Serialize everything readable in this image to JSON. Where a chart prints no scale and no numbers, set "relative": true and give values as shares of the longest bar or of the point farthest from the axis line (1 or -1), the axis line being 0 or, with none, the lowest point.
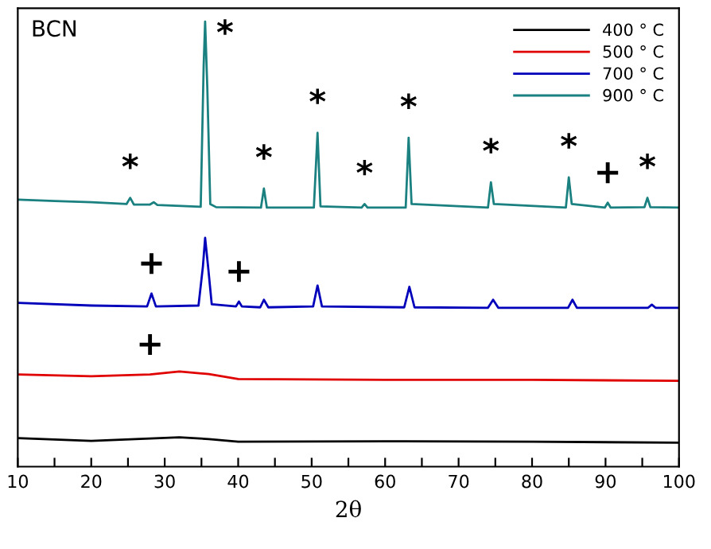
{
  "chart_data": {
    "type": "line",
    "xlabel": "2θ",
    "relative": true,
    "xlim": [
      10,
      100
    ],
    "xticks": [
      10,
      {
        "value": 15,
        "label": null
      },
      20,
      {
        "value": 25,
        "label": null
      },
      30,
      {
        "value": 35,
        "label": null
      },
      40,
      {
        "value": 45,
        "label": null
      },
      50,
      {
        "value": 55,
        "label": null
      },
      60,
      {
        "value": 65,
        "label": null
      },
      70,
      {
        "value": 75,
        "label": null
      },
      80,
      {
        "value": 85,
        "label": null
      },
      90,
      {
        "value": 95,
        "label": null
      },
      100
    ],
    "tick_labels": "x",
    "grid": false,
    "legend": "top right",
    "marker": "none",
    "line_style": "solid",
    "series": [
      {
        "name": "400 ° C",
        "color": "#000000",
        "x": [
          10,
          20,
          32,
          36,
          40,
          60,
          80,
          100
        ],
        "values": [
          0.064,
          0.058,
          0.066,
          0.062,
          0.056,
          0.057,
          0.056,
          0.054
        ]
      },
      {
        "name": "500 ° C",
        "color": "#e00000",
        "x": [
          10,
          20,
          28,
          32,
          36,
          40,
          60,
          80,
          100
        ],
        "values": [
          0.207,
          0.203,
          0.207,
          0.214,
          0.208,
          0.197,
          0.195,
          0.195,
          0.193
        ]
      },
      {
        "name": "700 ° C",
        "color": "#0000bb",
        "x": [
          10,
          20,
          27.6,
          28.2,
          28.8,
          34.6,
          35.2,
          35.5,
          35.9,
          36.4,
          39.7,
          40.1,
          40.5,
          43,
          43.5,
          44.1,
          50.2,
          50.8,
          51.4,
          62.6,
          63.3,
          64,
          74,
          74.7,
          75.4,
          84.9,
          85.5,
          86.1,
          95.8,
          96.3,
          96.8,
          100
        ],
        "values": [
          0.368,
          0.362,
          0.36,
          0.389,
          0.36,
          0.362,
          0.45,
          0.514,
          0.45,
          0.365,
          0.36,
          0.371,
          0.36,
          0.358,
          0.375,
          0.358,
          0.36,
          0.407,
          0.36,
          0.358,
          0.404,
          0.358,
          0.357,
          0.375,
          0.357,
          0.357,
          0.375,
          0.357,
          0.357,
          0.364,
          0.357,
          0.357
        ]
      },
      {
        "name": "900 ° C",
        "color": "#1a8080",
        "x": [
          10,
          15,
          20,
          24.8,
          25.3,
          25.8,
          28,
          28.5,
          29,
          34.9,
          35.3,
          35.5,
          35.8,
          36.2,
          37,
          43.1,
          43.5,
          43.9,
          50.3,
          50.8,
          51.2,
          56.8,
          57.2,
          57.6,
          62.8,
          63.2,
          63.6,
          74,
          74.4,
          74.8,
          84.6,
          85,
          85.4,
          89.9,
          90.3,
          90.7,
          95.3,
          95.7,
          96.1,
          100
        ],
        "values": [
          0.6,
          0.597,
          0.594,
          0.59,
          0.604,
          0.589,
          0.589,
          0.594,
          0.588,
          0.584,
          0.9,
          1.0,
          0.85,
          0.59,
          0.583,
          0.582,
          0.625,
          0.582,
          0.582,
          0.75,
          0.585,
          0.582,
          0.59,
          0.582,
          0.582,
          0.739,
          0.59,
          0.582,
          0.639,
          0.59,
          0.582,
          0.65,
          0.59,
          0.582,
          0.593,
          0.582,
          0.583,
          0.604,
          0.583,
          0.582
        ]
      }
    ],
    "annotations": [
      "BCN",
      {
        "text": "*",
        "x": 25.3,
        "y": 0.604
      },
      {
        "text": "*",
        "x": 35.5,
        "y": 1.0
      },
      {
        "text": "*",
        "x": 43.5,
        "y": 0.625
      },
      {
        "text": "*",
        "x": 50.8,
        "y": 0.75
      },
      {
        "text": "*",
        "x": 57.2,
        "y": 0.59
      },
      {
        "text": "*",
        "x": 63.2,
        "y": 0.739
      },
      {
        "text": "*",
        "x": 74.4,
        "y": 0.639
      },
      {
        "text": "*",
        "x": 85,
        "y": 0.65
      },
      {
        "text": "+",
        "x": 90.3,
        "y": 0.593
      },
      {
        "text": "*",
        "x": 95.7,
        "y": 0.604
      },
      {
        "text": "+",
        "x": 28.2,
        "y": 0.389
      },
      {
        "text": "+",
        "x": 40.1,
        "y": 0.371
      },
      {
        "text": "+",
        "x": 28,
        "y": 0.207
      }
    ]
  }
}
